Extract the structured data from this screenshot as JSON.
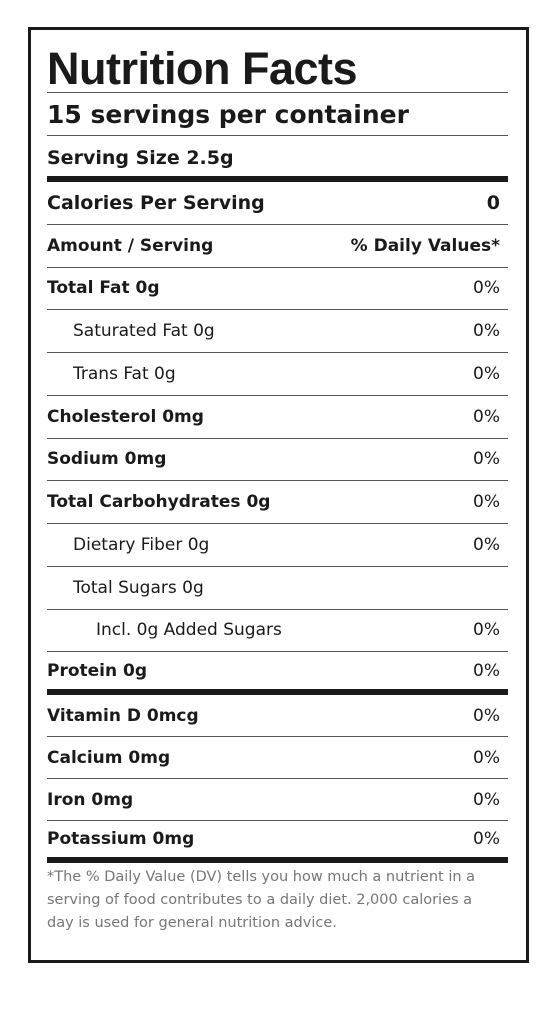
{
  "title": "Nutrition Facts",
  "servings": "15 servings per container",
  "serving_size": "Serving Size 2.5g",
  "calories": {
    "label": "Calories Per Serving",
    "value": "0"
  },
  "header": {
    "label": "Amount / Serving",
    "dv": "% Daily Values*"
  },
  "nutrients": [
    {
      "label": "Total Fat 0g",
      "dv": "0%"
    },
    {
      "label": "Saturated Fat 0g",
      "dv": "0%"
    },
    {
      "label": "Trans Fat 0g",
      "dv": "0%"
    },
    {
      "label": "Cholesterol 0mg",
      "dv": "0%"
    },
    {
      "label": "Sodium 0mg",
      "dv": "0%"
    },
    {
      "label": "Total Carbohydrates 0g",
      "dv": "0%"
    },
    {
      "label": "Dietary Fiber 0g",
      "dv": "0%"
    },
    {
      "label": "Total Sugars 0g"
    },
    {
      "label": "Incl. 0g Added Sugars",
      "dv": "0%"
    },
    {
      "label": "Protein 0g",
      "dv": "0%"
    }
  ],
  "vitamins": [
    {
      "label": "Vitamin D 0mcg",
      "dv": "0%"
    },
    {
      "label": "Calcium 0mg",
      "dv": "0%"
    },
    {
      "label": "Iron 0mg",
      "dv": "0%"
    },
    {
      "label": "Potassium 0mg",
      "dv": "0%"
    }
  ],
  "footnote": "*The % Daily Value (DV) tells you how much a nutrient in a serving of food contributes to a daily diet. 2,000 calories a day is used for general nutrition advice."
}
